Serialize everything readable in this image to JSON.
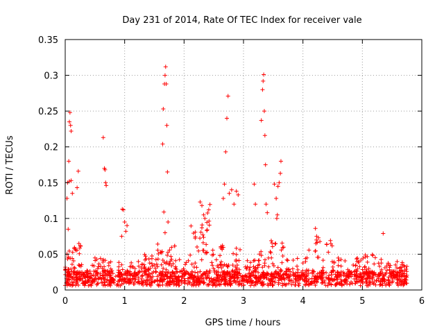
{
  "chart_data": {
    "type": "scatter",
    "title": "Day 231 of 2014, Rate Of TEC Index for receiver vale",
    "xlabel": "GPS time / hours",
    "ylabel": "ROTI / TECUs",
    "xlim": [
      0,
      6
    ],
    "ylim": [
      0,
      0.35
    ],
    "xticks": [
      0,
      1,
      2,
      3,
      4,
      5,
      6
    ],
    "yticks": [
      0,
      0.05,
      0.1,
      0.15,
      0.2,
      0.25,
      0.3,
      0.35
    ],
    "xtick_labels": [
      "0",
      "1",
      "2",
      "3",
      "4",
      "5",
      "6"
    ],
    "ytick_labels": [
      "0",
      "0.05",
      "0.1",
      "0.15",
      "0.2",
      "0.25",
      "0.3",
      "0.35"
    ],
    "grid": true,
    "marker": "+",
    "color": "#ff0000",
    "background_band": {
      "x_range": [
        0.0,
        5.75
      ],
      "baseline_min": 0.006,
      "baseline_max": 0.026,
      "density_per_hour": 230
    },
    "clusters": [
      {
        "x": [
          0.0,
          0.15
        ],
        "y": [
          0.02,
          0.055
        ],
        "n": 20
      },
      {
        "x": [
          0.15,
          0.3
        ],
        "y": [
          0.03,
          0.065
        ],
        "n": 12
      },
      {
        "x": [
          0.45,
          0.8
        ],
        "y": [
          0.025,
          0.045
        ],
        "n": 20
      },
      {
        "x": [
          0.9,
          1.1
        ],
        "y": [
          0.02,
          0.04
        ],
        "n": 8
      },
      {
        "x": [
          1.05,
          1.3
        ],
        "y": [
          0.025,
          0.04
        ],
        "n": 10
      },
      {
        "x": [
          1.3,
          1.55
        ],
        "y": [
          0.025,
          0.05
        ],
        "n": 18
      },
      {
        "x": [
          1.55,
          1.85
        ],
        "y": [
          0.03,
          0.065
        ],
        "n": 25
      },
      {
        "x": [
          1.85,
          2.1
        ],
        "y": [
          0.025,
          0.045
        ],
        "n": 10
      },
      {
        "x": [
          2.1,
          2.3
        ],
        "y": [
          0.035,
          0.09
        ],
        "n": 14
      },
      {
        "x": [
          2.3,
          2.45
        ],
        "y": [
          0.05,
          0.12
        ],
        "n": 18
      },
      {
        "x": [
          2.45,
          2.65
        ],
        "y": [
          0.025,
          0.06
        ],
        "n": 14
      },
      {
        "x": [
          2.6,
          2.75
        ],
        "y": [
          0.03,
          0.075
        ],
        "n": 10
      },
      {
        "x": [
          2.8,
          3.0
        ],
        "y": [
          0.025,
          0.06
        ],
        "n": 12
      },
      {
        "x": [
          3.0,
          3.3
        ],
        "y": [
          0.025,
          0.045
        ],
        "n": 14
      },
      {
        "x": [
          3.25,
          3.45
        ],
        "y": [
          0.03,
          0.055
        ],
        "n": 10
      },
      {
        "x": [
          3.45,
          3.7
        ],
        "y": [
          0.025,
          0.07
        ],
        "n": 18
      },
      {
        "x": [
          3.7,
          4.1
        ],
        "y": [
          0.02,
          0.045
        ],
        "n": 18
      },
      {
        "x": [
          4.1,
          4.5
        ],
        "y": [
          0.025,
          0.07
        ],
        "n": 20
      },
      {
        "x": [
          4.5,
          5.0
        ],
        "y": [
          0.025,
          0.045
        ],
        "n": 20
      },
      {
        "x": [
          5.0,
          5.4
        ],
        "y": [
          0.02,
          0.05
        ],
        "n": 18
      },
      {
        "x": [
          5.4,
          5.75
        ],
        "y": [
          0.025,
          0.04
        ],
        "n": 18
      }
    ],
    "outliers": [
      [
        0.03,
        0.128
      ],
      [
        0.04,
        0.15
      ],
      [
        0.05,
        0.085
      ],
      [
        0.06,
        0.18
      ],
      [
        0.07,
        0.235
      ],
      [
        0.07,
        0.152
      ],
      [
        0.08,
        0.248
      ],
      [
        0.09,
        0.23
      ],
      [
        0.1,
        0.222
      ],
      [
        0.1,
        0.153
      ],
      [
        0.12,
        0.135
      ],
      [
        0.2,
        0.143
      ],
      [
        0.22,
        0.166
      ],
      [
        0.64,
        0.213
      ],
      [
        0.66,
        0.17
      ],
      [
        0.67,
        0.168
      ],
      [
        0.68,
        0.15
      ],
      [
        0.69,
        0.146
      ],
      [
        0.96,
        0.113
      ],
      [
        0.98,
        0.112
      ],
      [
        1.0,
        0.095
      ],
      [
        1.02,
        0.082
      ],
      [
        1.04,
        0.09
      ],
      [
        0.95,
        0.075
      ],
      [
        1.64,
        0.204
      ],
      [
        1.65,
        0.253
      ],
      [
        1.66,
        0.109
      ],
      [
        1.67,
        0.288
      ],
      [
        1.68,
        0.3
      ],
      [
        1.69,
        0.312
      ],
      [
        1.7,
        0.288
      ],
      [
        1.71,
        0.23
      ],
      [
        1.72,
        0.165
      ],
      [
        1.73,
        0.095
      ],
      [
        1.68,
        0.08
      ],
      [
        2.27,
        0.123
      ],
      [
        2.3,
        0.118
      ],
      [
        2.33,
        0.105
      ],
      [
        2.35,
        0.1
      ],
      [
        2.66,
        0.128
      ],
      [
        2.68,
        0.148
      ],
      [
        2.7,
        0.193
      ],
      [
        2.72,
        0.24
      ],
      [
        2.74,
        0.271
      ],
      [
        2.76,
        0.135
      ],
      [
        2.8,
        0.14
      ],
      [
        2.84,
        0.12
      ],
      [
        2.88,
        0.138
      ],
      [
        2.91,
        0.133
      ],
      [
        3.18,
        0.148
      ],
      [
        3.2,
        0.12
      ],
      [
        3.3,
        0.237
      ],
      [
        3.32,
        0.28
      ],
      [
        3.33,
        0.292
      ],
      [
        3.34,
        0.301
      ],
      [
        3.35,
        0.25
      ],
      [
        3.36,
        0.216
      ],
      [
        3.37,
        0.175
      ],
      [
        3.38,
        0.12
      ],
      [
        3.4,
        0.108
      ],
      [
        3.52,
        0.148
      ],
      [
        3.55,
        0.128
      ],
      [
        3.58,
        0.145
      ],
      [
        3.6,
        0.15
      ],
      [
        3.62,
        0.163
      ],
      [
        3.63,
        0.18
      ],
      [
        3.57,
        0.105
      ],
      [
        3.56,
        0.1
      ],
      [
        4.21,
        0.086
      ],
      [
        4.23,
        0.075
      ],
      [
        4.26,
        0.073
      ],
      [
        5.35,
        0.079
      ]
    ]
  }
}
